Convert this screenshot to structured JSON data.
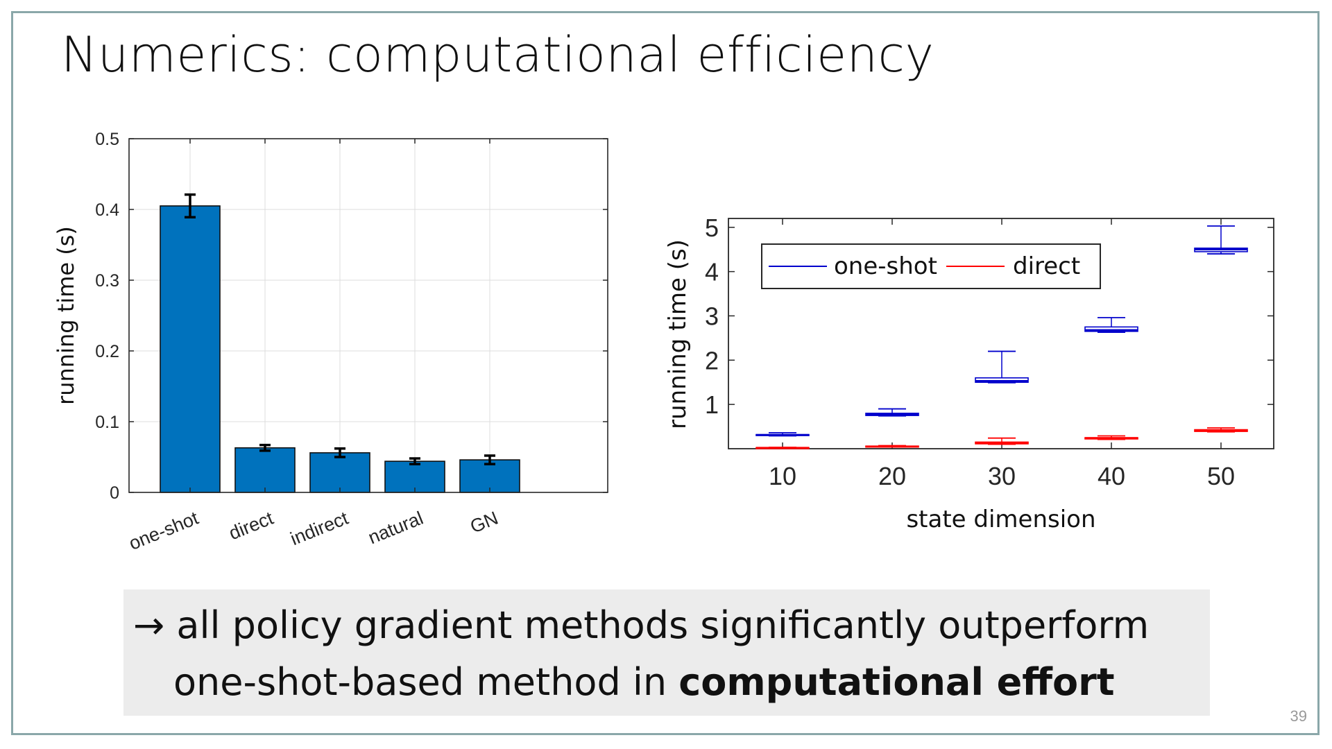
{
  "slide": {
    "title": "Numerics: computational efficiency",
    "callout_line1": "→ all policy gradient methods significantly outperform",
    "callout_line2_prefix": "one-shot-based method in ",
    "callout_line2_bold": "computational effort",
    "page_number": "39",
    "frame_color": "#8aa7a9"
  },
  "chart_data": [
    {
      "type": "bar",
      "categories": [
        "one-shot",
        "direct",
        "indirect",
        "natural",
        "GN"
      ],
      "values": [
        0.405,
        0.063,
        0.056,
        0.044,
        0.046
      ],
      "errors": [
        0.016,
        0.004,
        0.006,
        0.004,
        0.006
      ],
      "ylabel": "running time (s)",
      "ylim": [
        0,
        0.5
      ],
      "yticks": [
        "0",
        "0.1",
        "0.2",
        "0.3",
        "0.4",
        "0.5"
      ],
      "yticks_values": [
        0,
        0.1,
        0.2,
        0.3,
        0.4,
        0.5
      ],
      "grid": true,
      "bar_color": "#0072bd"
    },
    {
      "type": "box",
      "x": [
        10,
        20,
        30,
        40,
        50
      ],
      "xticks": [
        "10",
        "20",
        "30",
        "40",
        "50"
      ],
      "xlabel": "state dimension",
      "ylabel": "running time (s)",
      "ylim": [
        0,
        5.2
      ],
      "yticks": [
        "1",
        "2",
        "3",
        "4",
        "5"
      ],
      "yticks_values": [
        1,
        2,
        3,
        4,
        5
      ],
      "legend": "top-left",
      "series": [
        {
          "name": "one-shot",
          "color": "#0000cc",
          "boxes": [
            {
              "min": 0.29,
              "q1": 0.3,
              "median": 0.31,
              "q3": 0.32,
              "max": 0.36
            },
            {
              "min": 0.74,
              "q1": 0.75,
              "median": 0.77,
              "q3": 0.8,
              "max": 0.9
            },
            {
              "min": 1.49,
              "q1": 1.5,
              "median": 1.53,
              "q3": 1.6,
              "max": 2.2
            },
            {
              "min": 2.63,
              "q1": 2.65,
              "median": 2.68,
              "q3": 2.75,
              "max": 2.96
            },
            {
              "min": 4.4,
              "q1": 4.45,
              "median": 4.5,
              "q3": 4.53,
              "max": 5.03
            }
          ]
        },
        {
          "name": "direct",
          "color": "#ff0000",
          "boxes": [
            {
              "min": 0.01,
              "q1": 0.015,
              "median": 0.02,
              "q3": 0.025,
              "max": 0.03
            },
            {
              "min": 0.04,
              "q1": 0.045,
              "median": 0.05,
              "q3": 0.06,
              "max": 0.07
            },
            {
              "min": 0.1,
              "q1": 0.11,
              "median": 0.13,
              "q3": 0.15,
              "max": 0.24
            },
            {
              "min": 0.21,
              "q1": 0.22,
              "median": 0.24,
              "q3": 0.25,
              "max": 0.29
            },
            {
              "min": 0.38,
              "q1": 0.39,
              "median": 0.41,
              "q3": 0.43,
              "max": 0.47
            }
          ]
        }
      ]
    }
  ]
}
